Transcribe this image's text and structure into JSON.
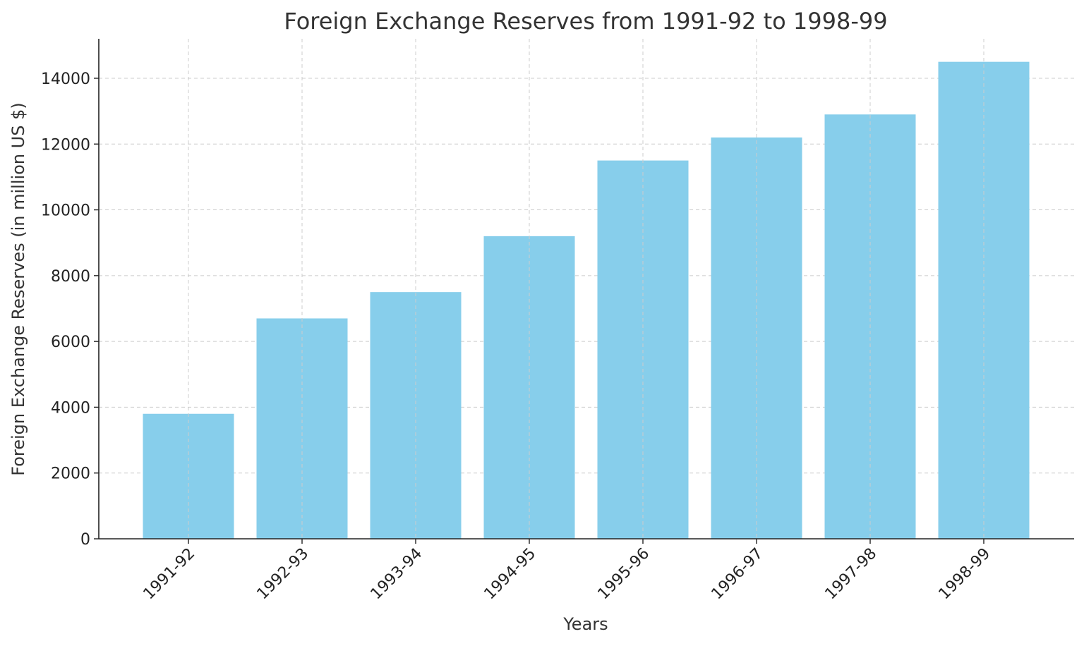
{
  "chart_data": {
    "type": "bar",
    "title": "Foreign Exchange Reserves from 1991-92 to 1998-99",
    "xlabel": "Years",
    "ylabel": "Foreign Exchange Reserves (in million US $)",
    "categories": [
      "1991-92",
      "1992-93",
      "1993-94",
      "1994-95",
      "1995-96",
      "1996-97",
      "1997-98",
      "1998-99"
    ],
    "values": [
      3800,
      6700,
      7500,
      9200,
      11500,
      12200,
      12900,
      14500
    ],
    "ylim": [
      0,
      15200
    ],
    "yticks": [
      0,
      2000,
      4000,
      6000,
      8000,
      10000,
      12000,
      14000
    ],
    "grid": true,
    "bar_color": "#87CEEB"
  }
}
